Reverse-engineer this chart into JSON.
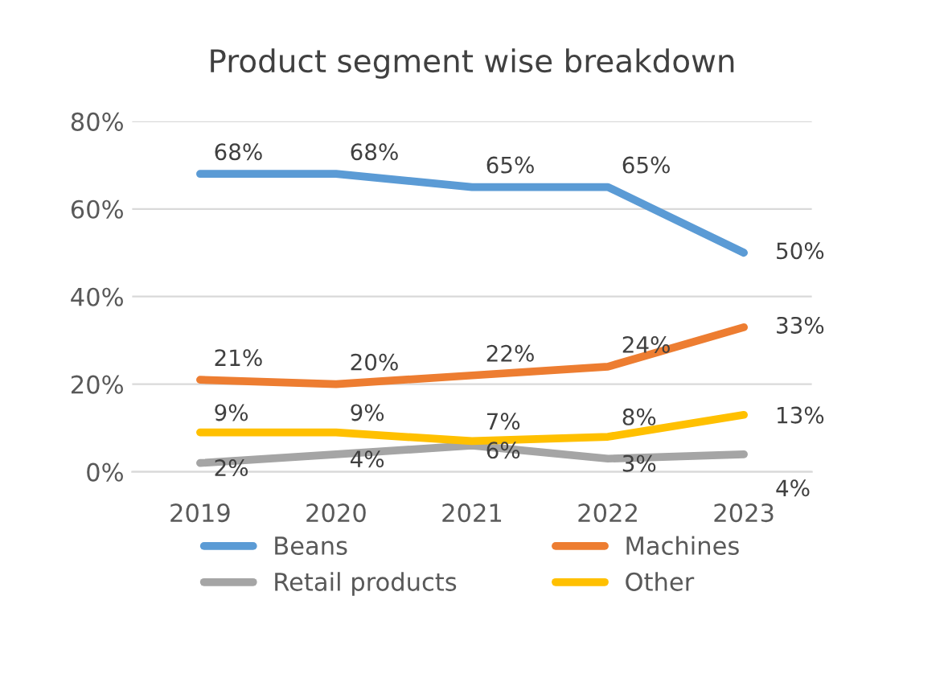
{
  "chart_data": {
    "type": "line",
    "title": "Product segment wise breakdown",
    "categories": [
      "2019",
      "2020",
      "2021",
      "2022",
      "2023"
    ],
    "series": [
      {
        "name": "Beans",
        "color": "#5b9bd5",
        "values": [
          68,
          68,
          65,
          65,
          50
        ],
        "value_labels": [
          "68%",
          "68%",
          "65%",
          "65%",
          "50%"
        ]
      },
      {
        "name": "Machines",
        "color": "#ed7d31",
        "values": [
          21,
          20,
          22,
          24,
          33
        ],
        "value_labels": [
          "21%",
          "20%",
          "22%",
          "24%",
          "33%"
        ]
      },
      {
        "name": "Retail products",
        "color": "#a5a5a5",
        "values": [
          2,
          4,
          6,
          3,
          4
        ],
        "value_labels": [
          "2%",
          "4%",
          "6%",
          "3%",
          "4%"
        ]
      },
      {
        "name": "Other",
        "color": "#ffc000",
        "values": [
          9,
          9,
          7,
          8,
          13
        ],
        "value_labels": [
          "9%",
          "9%",
          "7%",
          "8%",
          "13%"
        ]
      }
    ],
    "ylim": [
      0,
      80
    ],
    "yticks": [
      {
        "value": 0,
        "label": "0%"
      },
      {
        "value": 20,
        "label": "20%"
      },
      {
        "value": 40,
        "label": "40%"
      },
      {
        "value": 60,
        "label": "60%"
      },
      {
        "value": 80,
        "label": "80%"
      }
    ],
    "grid": "y",
    "legend": "bottom",
    "marker": "none",
    "line_style": "solid"
  }
}
